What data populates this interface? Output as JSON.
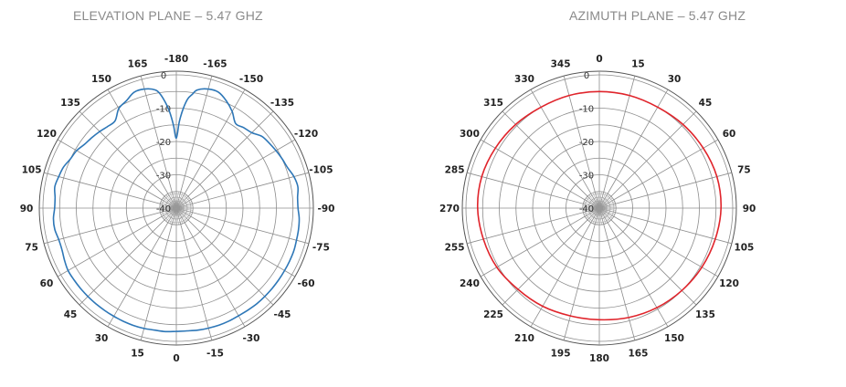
{
  "chart_data": [
    {
      "type": "polar-line",
      "title": "ELEVATION PLANE – 5.47 GHZ",
      "radial_range": [
        -40,
        0
      ],
      "radial_ticks": [
        -40,
        -30,
        -20,
        -10,
        0
      ],
      "radial_tick_labels": [
        "-40",
        "-30",
        "-20",
        "-10",
        "0"
      ],
      "grid": true,
      "line_color": "#2e77b7",
      "angle_labels": [
        {
          "deg": 0,
          "text": "-180"
        },
        {
          "deg": 15,
          "text": "-165"
        },
        {
          "deg": 30,
          "text": "-150"
        },
        {
          "deg": 45,
          "text": "-135"
        },
        {
          "deg": 60,
          "text": "-120"
        },
        {
          "deg": 75,
          "text": "-105"
        },
        {
          "deg": 90,
          "text": "-90"
        },
        {
          "deg": 105,
          "text": "-75"
        },
        {
          "deg": 120,
          "text": "-60"
        },
        {
          "deg": 135,
          "text": "-45"
        },
        {
          "deg": 150,
          "text": "-30"
        },
        {
          "deg": 165,
          "text": "-15"
        },
        {
          "deg": 180,
          "text": "0"
        },
        {
          "deg": 195,
          "text": "15"
        },
        {
          "deg": 210,
          "text": "30"
        },
        {
          "deg": 225,
          "text": "45"
        },
        {
          "deg": 240,
          "text": "60"
        },
        {
          "deg": 255,
          "text": "75"
        },
        {
          "deg": 270,
          "text": "90"
        },
        {
          "deg": 285,
          "text": "105"
        },
        {
          "deg": 300,
          "text": "120"
        },
        {
          "deg": 315,
          "text": "135"
        },
        {
          "deg": 330,
          "text": "150"
        },
        {
          "deg": 345,
          "text": "165"
        }
      ],
      "series": [
        {
          "theta": [
            0,
            2,
            4,
            6,
            8,
            10,
            15,
            20,
            25,
            30,
            35,
            40,
            45,
            50,
            55,
            60,
            65,
            70,
            75,
            80,
            85,
            90,
            95,
            100,
            105,
            110,
            115,
            120,
            125,
            130,
            135,
            140,
            145,
            150,
            155,
            160,
            165,
            170,
            175,
            180,
            185,
            190,
            195,
            200,
            205,
            210,
            215,
            220,
            225,
            230,
            235,
            240,
            245,
            250,
            255,
            260,
            265,
            270,
            275,
            280,
            285,
            290,
            295,
            300,
            305,
            310,
            315,
            320,
            325,
            330,
            335,
            340,
            345,
            350,
            352,
            354,
            356,
            358
          ],
          "r": [
            -19,
            -14,
            -10,
            -7,
            -5.5,
            -4,
            -3,
            -3,
            -4.5,
            -6.5,
            -9,
            -8.5,
            -8,
            -6.5,
            -6,
            -5.5,
            -5,
            -4.5,
            -3.5,
            -3,
            -3.5,
            -3.5,
            -3,
            -2.8,
            -2.7,
            -2.5,
            -2.5,
            -2.5,
            -2.5,
            -2.5,
            -2.5,
            -2.5,
            -2.6,
            -2.7,
            -2.6,
            -2.6,
            -2.7,
            -2.8,
            -3,
            -3,
            -2.8,
            -2.8,
            -2.6,
            -2.5,
            -2.5,
            -2.5,
            -2.5,
            -2.5,
            -2.5,
            -2.5,
            -2.5,
            -2.5,
            -3,
            -3.5,
            -3.5,
            -3,
            -3,
            -3.5,
            -3.5,
            -3,
            -3.5,
            -4,
            -5,
            -5.5,
            -6.5,
            -7,
            -7.5,
            -8,
            -8,
            -5.5,
            -4.5,
            -3,
            -3,
            -4,
            -5.5,
            -8,
            -11,
            -15
          ]
        }
      ]
    },
    {
      "type": "polar-line",
      "title": "AZIMUTH PLANE – 5.47 GHZ",
      "radial_range": [
        -40,
        0
      ],
      "radial_ticks": [
        -40,
        -30,
        -20,
        -10,
        0
      ],
      "radial_tick_labels": [
        "-40",
        "-30",
        "-20",
        "-10",
        "0"
      ],
      "grid": true,
      "line_color": "#e0242b",
      "angle_labels": [
        {
          "deg": 0,
          "text": "0"
        },
        {
          "deg": 15,
          "text": "15"
        },
        {
          "deg": 30,
          "text": "30"
        },
        {
          "deg": 45,
          "text": "45"
        },
        {
          "deg": 60,
          "text": "60"
        },
        {
          "deg": 75,
          "text": "75"
        },
        {
          "deg": 90,
          "text": "90"
        },
        {
          "deg": 105,
          "text": "105"
        },
        {
          "deg": 120,
          "text": "120"
        },
        {
          "deg": 135,
          "text": "135"
        },
        {
          "deg": 150,
          "text": "150"
        },
        {
          "deg": 165,
          "text": "165"
        },
        {
          "deg": 180,
          "text": "180"
        },
        {
          "deg": 195,
          "text": "195"
        },
        {
          "deg": 210,
          "text": "210"
        },
        {
          "deg": 225,
          "text": "225"
        },
        {
          "deg": 240,
          "text": "240"
        },
        {
          "deg": 255,
          "text": "255"
        },
        {
          "deg": 270,
          "text": "270"
        },
        {
          "deg": 285,
          "text": "285"
        },
        {
          "deg": 300,
          "text": "300"
        },
        {
          "deg": 315,
          "text": "315"
        },
        {
          "deg": 330,
          "text": "330"
        },
        {
          "deg": 345,
          "text": "345"
        }
      ],
      "series": [
        {
          "theta": [
            0,
            15,
            30,
            45,
            60,
            75,
            90,
            105,
            120,
            135,
            150,
            165,
            180,
            195,
            210,
            225,
            240,
            255,
            270,
            285,
            300,
            315,
            330,
            345
          ],
          "r": [
            -5,
            -5,
            -5,
            -4.5,
            -4,
            -3.5,
            -3.5,
            -4,
            -4.5,
            -5,
            -5.5,
            -6,
            -6.5,
            -6.5,
            -6,
            -5.5,
            -4.5,
            -4,
            -3.5,
            -3.5,
            -4,
            -4.5,
            -5,
            -5
          ]
        }
      ]
    }
  ]
}
